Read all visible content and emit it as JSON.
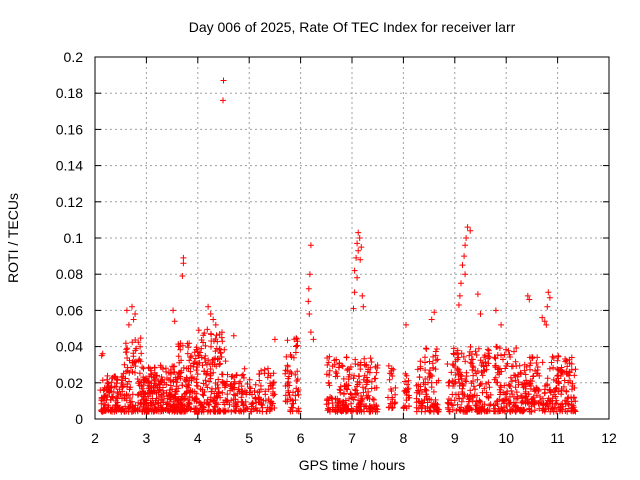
{
  "chart_data": {
    "type": "scatter",
    "title": "Day 006 of 2025, Rate Of TEC Index for receiver larr",
    "xlabel": "GPS time / hours",
    "ylabel": "ROTI / TECUs",
    "xlim": [
      2,
      12
    ],
    "ylim": [
      0,
      0.2
    ],
    "grid": true,
    "marker": "+",
    "color": "#ff0000",
    "x_ticks": [
      2,
      3,
      4,
      5,
      6,
      7,
      8,
      9,
      10,
      11,
      12
    ],
    "x_tick_labels": [
      "2",
      "3",
      "4",
      "5",
      "6",
      "7",
      "8",
      "9",
      "10",
      "11",
      "12"
    ],
    "y_ticks": [
      0,
      0.02,
      0.04,
      0.06,
      0.08,
      0.1,
      0.12,
      0.14,
      0.16,
      0.18,
      0.2
    ],
    "y_tick_labels": [
      "0",
      "0.02",
      "0.04",
      "0.06",
      "0.08",
      "0.1",
      "0.12",
      "0.14",
      "0.16",
      "0.18",
      "0.2"
    ],
    "series": [
      {
        "name": "ROTI",
        "clusters": [
          {
            "x_range": [
              2.1,
              2.55
            ],
            "y_range": [
              0.004,
              0.024
            ],
            "count": 120
          },
          {
            "x_range": [
              2.55,
              2.9
            ],
            "y_range": [
              0.004,
              0.045
            ],
            "count": 90
          },
          {
            "x_range": [
              2.9,
              3.6
            ],
            "y_range": [
              0.004,
              0.03
            ],
            "count": 230
          },
          {
            "x_range": [
              3.6,
              4.0
            ],
            "y_range": [
              0.004,
              0.042
            ],
            "count": 140
          },
          {
            "x_range": [
              4.0,
              4.55
            ],
            "y_range": [
              0.004,
              0.05
            ],
            "count": 160
          },
          {
            "x_range": [
              4.55,
              5.5
            ],
            "y_range": [
              0.004,
              0.028
            ],
            "count": 160
          },
          {
            "x_range": [
              5.7,
              5.97
            ],
            "y_range": [
              0.004,
              0.045
            ],
            "count": 60
          },
          {
            "x_range": [
              6.5,
              7.5
            ],
            "y_range": [
              0.004,
              0.035
            ],
            "count": 230
          },
          {
            "x_range": [
              7.7,
              7.85
            ],
            "y_range": [
              0.006,
              0.03
            ],
            "count": 25
          },
          {
            "x_range": [
              8.0,
              8.12
            ],
            "y_range": [
              0.006,
              0.025
            ],
            "count": 25
          },
          {
            "x_range": [
              8.25,
              8.7
            ],
            "y_range": [
              0.004,
              0.04
            ],
            "count": 100
          },
          {
            "x_range": [
              8.85,
              9.7
            ],
            "y_range": [
              0.004,
              0.04
            ],
            "count": 200
          },
          {
            "x_range": [
              9.75,
              10.2
            ],
            "y_range": [
              0.004,
              0.04
            ],
            "count": 110
          },
          {
            "x_range": [
              10.2,
              11.35
            ],
            "y_range": [
              0.004,
              0.035
            ],
            "count": 260
          }
        ],
        "points": [
          {
            "x": 4.5,
            "y": 0.187
          },
          {
            "x": 4.49,
            "y": 0.176
          },
          {
            "x": 2.15,
            "y": 0.036
          },
          {
            "x": 2.13,
            "y": 0.035
          },
          {
            "x": 2.62,
            "y": 0.06
          },
          {
            "x": 2.66,
            "y": 0.052
          },
          {
            "x": 2.72,
            "y": 0.062
          },
          {
            "x": 2.78,
            "y": 0.058
          },
          {
            "x": 2.75,
            "y": 0.055
          },
          {
            "x": 3.52,
            "y": 0.06
          },
          {
            "x": 3.55,
            "y": 0.054
          },
          {
            "x": 3.72,
            "y": 0.089
          },
          {
            "x": 3.72,
            "y": 0.086
          },
          {
            "x": 3.7,
            "y": 0.079
          },
          {
            "x": 4.2,
            "y": 0.062
          },
          {
            "x": 4.25,
            "y": 0.058
          },
          {
            "x": 4.3,
            "y": 0.055
          },
          {
            "x": 4.35,
            "y": 0.052
          },
          {
            "x": 4.7,
            "y": 0.046
          },
          {
            "x": 5.5,
            "y": 0.044
          },
          {
            "x": 6.2,
            "y": 0.096
          },
          {
            "x": 6.18,
            "y": 0.08
          },
          {
            "x": 6.16,
            "y": 0.072
          },
          {
            "x": 6.15,
            "y": 0.065
          },
          {
            "x": 6.17,
            "y": 0.058
          },
          {
            "x": 6.2,
            "y": 0.048
          },
          {
            "x": 6.25,
            "y": 0.044
          },
          {
            "x": 7.12,
            "y": 0.103
          },
          {
            "x": 7.15,
            "y": 0.1
          },
          {
            "x": 7.1,
            "y": 0.097
          },
          {
            "x": 7.18,
            "y": 0.095
          },
          {
            "x": 7.12,
            "y": 0.093
          },
          {
            "x": 7.08,
            "y": 0.089
          },
          {
            "x": 7.16,
            "y": 0.088
          },
          {
            "x": 7.05,
            "y": 0.082
          },
          {
            "x": 7.1,
            "y": 0.078
          },
          {
            "x": 7.05,
            "y": 0.07
          },
          {
            "x": 7.2,
            "y": 0.068
          },
          {
            "x": 7.22,
            "y": 0.062
          },
          {
            "x": 7.03,
            "y": 0.061
          },
          {
            "x": 8.05,
            "y": 0.052
          },
          {
            "x": 8.6,
            "y": 0.059
          },
          {
            "x": 8.55,
            "y": 0.055
          },
          {
            "x": 9.25,
            "y": 0.106
          },
          {
            "x": 9.3,
            "y": 0.104
          },
          {
            "x": 9.22,
            "y": 0.1
          },
          {
            "x": 9.2,
            "y": 0.096
          },
          {
            "x": 9.18,
            "y": 0.09
          },
          {
            "x": 9.15,
            "y": 0.085
          },
          {
            "x": 9.2,
            "y": 0.08
          },
          {
            "x": 9.12,
            "y": 0.075
          },
          {
            "x": 9.1,
            "y": 0.068
          },
          {
            "x": 9.08,
            "y": 0.063
          },
          {
            "x": 9.45,
            "y": 0.069
          },
          {
            "x": 9.5,
            "y": 0.058
          },
          {
            "x": 9.8,
            "y": 0.06
          },
          {
            "x": 9.9,
            "y": 0.052
          },
          {
            "x": 10.42,
            "y": 0.068
          },
          {
            "x": 10.45,
            "y": 0.066
          },
          {
            "x": 10.82,
            "y": 0.07
          },
          {
            "x": 10.85,
            "y": 0.067
          },
          {
            "x": 10.8,
            "y": 0.062
          },
          {
            "x": 10.7,
            "y": 0.056
          },
          {
            "x": 10.75,
            "y": 0.054
          },
          {
            "x": 10.78,
            "y": 0.052
          }
        ]
      }
    ]
  }
}
